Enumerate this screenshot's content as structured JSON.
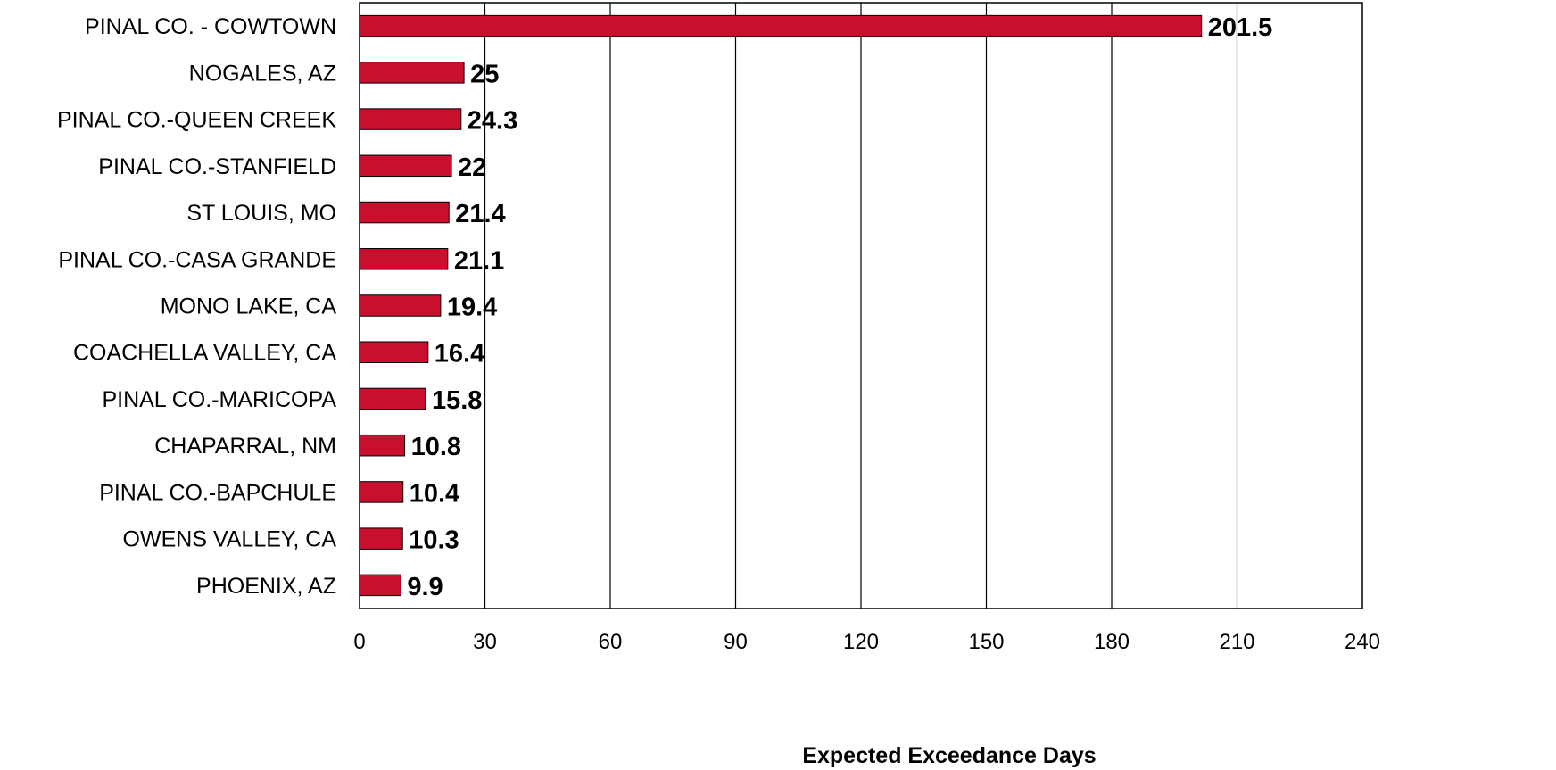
{
  "chart_data": {
    "type": "bar",
    "orientation": "horizontal",
    "categories": [
      "PINAL CO. - COWTOWN",
      "NOGALES, AZ",
      "PINAL CO.-QUEEN CREEK",
      "PINAL CO.-STANFIELD",
      "ST LOUIS, MO",
      "PINAL CO.-CASA GRANDE",
      "MONO LAKE, CA",
      "COACHELLA VALLEY, CA",
      "PINAL CO.-MARICOPA",
      "CHAPARRAL, NM",
      "PINAL CO.-BAPCHULE",
      "OWENS VALLEY, CA",
      "PHOENIX, AZ"
    ],
    "values": [
      201.5,
      25,
      24.3,
      22,
      21.4,
      21.1,
      19.4,
      16.4,
      15.8,
      10.8,
      10.4,
      10.3,
      9.9
    ],
    "data_labels": [
      "201.5",
      "25",
      "24.3",
      "22",
      "21.4",
      "21.1",
      "19.4",
      "16.4",
      "15.8",
      "10.8",
      "10.4",
      "10.3",
      "9.9"
    ],
    "title": "",
    "xlabel": "Expected Exceedance Days",
    "ylabel": "",
    "xlim": [
      0,
      240
    ],
    "xticks": [
      0,
      30,
      60,
      90,
      120,
      150,
      180,
      210,
      240
    ],
    "grid": "vertical",
    "legend": "none",
    "bar_color": "#C8102E",
    "bar_edge_color": "#000000"
  }
}
